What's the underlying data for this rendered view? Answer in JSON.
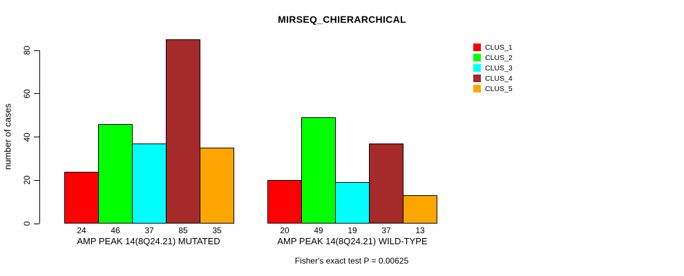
{
  "chart_data": {
    "type": "bar",
    "title": "MIRSEQ_CHIERARCHICAL",
    "ylabel": "number of cases",
    "xlabel": "",
    "annotation": "Fisher's exact test P = 0.00625",
    "yticks": [
      0,
      20,
      40,
      60,
      80
    ],
    "ylim": [
      0,
      85
    ],
    "grid": false,
    "legend_position": "right",
    "series_names": [
      "CLUS_1",
      "CLUS_2",
      "CLUS_3",
      "CLUS_4",
      "CLUS_5"
    ],
    "series_colors": [
      "#FF0000",
      "#00FF00",
      "#00FFFF",
      "#A52A2A",
      "#FFA500"
    ],
    "groups": [
      {
        "label": "AMP PEAK 14(8Q24.21) MUTATED",
        "values": [
          24,
          46,
          37,
          85,
          35
        ]
      },
      {
        "label": "AMP PEAK 14(8Q24.21) WILD-TYPE",
        "values": [
          20,
          49,
          19,
          37,
          13
        ]
      }
    ],
    "legend": {
      "items": [
        {
          "label": "CLUS_1",
          "color": "#FF0000"
        },
        {
          "label": "CLUS_2",
          "color": "#00FF00"
        },
        {
          "label": "CLUS_3",
          "color": "#00FFFF"
        },
        {
          "label": "CLUS_4",
          "color": "#A52A2A"
        },
        {
          "label": "CLUS_5",
          "color": "#FFA500"
        }
      ]
    }
  }
}
